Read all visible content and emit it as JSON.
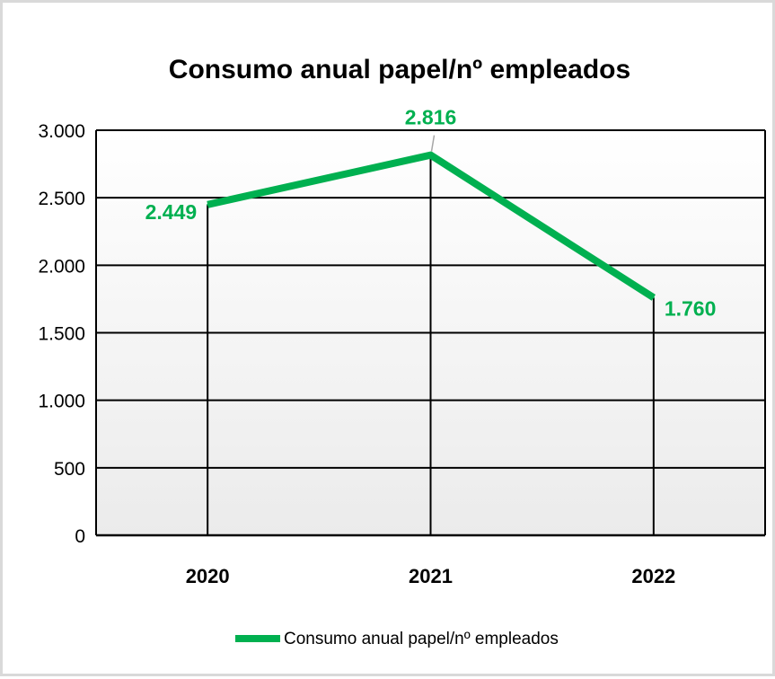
{
  "chart_data": {
    "type": "line",
    "title": "Consumo anual papel/nº empleados",
    "categories": [
      "2020",
      "2021",
      "2022"
    ],
    "series": [
      {
        "name": "Consumo anual papel/nº empleados",
        "values": [
          2449,
          2816,
          1760
        ],
        "data_labels": [
          "2.449",
          "2.816",
          "1.760"
        ],
        "color": "#00b050"
      }
    ],
    "ylim": [
      0,
      3000
    ],
    "yticks": [
      0,
      500,
      1000,
      1500,
      2000,
      2500,
      3000
    ],
    "ytick_labels": [
      "0",
      "500",
      "1.000",
      "1.500",
      "2.000",
      "2.500",
      "3.000"
    ],
    "xlabel": "",
    "ylabel": "",
    "grid": true,
    "drop_lines": true,
    "legend_position": "bottom",
    "plot_background": "#f2f2f2"
  }
}
